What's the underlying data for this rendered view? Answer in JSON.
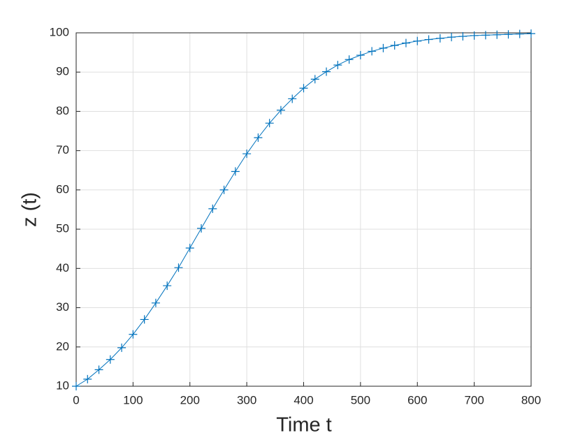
{
  "chart_data": {
    "type": "line",
    "xlabel": "Time t",
    "ylabel": "z (t)",
    "x": [
      0,
      20,
      40,
      60,
      80,
      100,
      120,
      140,
      160,
      180,
      200,
      220,
      240,
      260,
      280,
      300,
      320,
      340,
      360,
      380,
      400,
      420,
      440,
      460,
      480,
      500,
      520,
      540,
      560,
      580,
      600,
      620,
      640,
      660,
      680,
      700,
      720,
      740,
      760,
      780,
      800
    ],
    "values": [
      10,
      11.8,
      14.2,
      16.8,
      19.8,
      23.2,
      27,
      31.2,
      35.6,
      40.2,
      45.2,
      50.2,
      55.2,
      60,
      64.7,
      69.2,
      73.3,
      77,
      80.3,
      83.2,
      85.9,
      88.2,
      90.1,
      91.8,
      93.2,
      94.3,
      95.3,
      96.1,
      96.8,
      97.4,
      97.9,
      98.3,
      98.6,
      98.9,
      99.1,
      99.3,
      99.4,
      99.5,
      99.6,
      99.7,
      99.8
    ],
    "color": "#0072bd",
    "marker": "+",
    "xlim": [
      0,
      800
    ],
    "xticks": [
      0,
      100,
      200,
      300,
      400,
      500,
      600,
      700,
      800
    ],
    "ylim": [
      10,
      100
    ],
    "yticks": [
      10,
      20,
      30,
      40,
      50,
      60,
      70,
      80,
      90,
      100
    ],
    "grid": true
  }
}
